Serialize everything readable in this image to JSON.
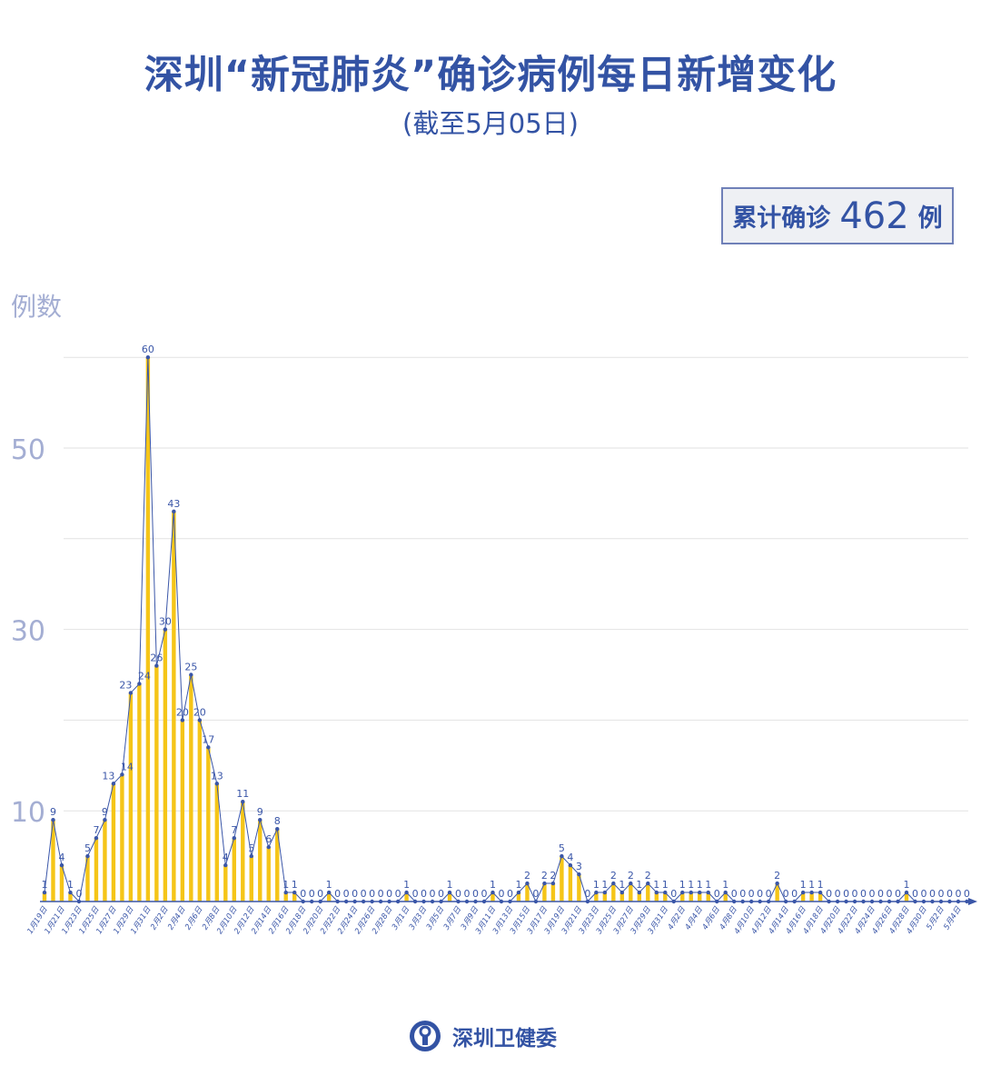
{
  "title": "深圳“新冠肺炎”确诊病例每日新增变化",
  "subtitle": "(截至5月05日)",
  "total": {
    "label": "累计确诊",
    "value": "462",
    "unit": "例"
  },
  "footer": {
    "org": "深圳卫健委"
  },
  "colors": {
    "bar": "#f5c518",
    "line": "#3a56a8",
    "text": "#3353a4",
    "axis_tick": "#a4aed3",
    "grid": "#e2e2e2"
  },
  "chart_data": {
    "type": "bar+line",
    "ylabel": "例数",
    "ylim": [
      0,
      60
    ],
    "yticks": [
      10,
      30,
      50
    ],
    "gridlines": [
      10,
      20,
      30,
      40,
      50,
      60
    ],
    "grid": true,
    "start_date": "1月19日",
    "values": [
      1,
      9,
      4,
      1,
      0,
      5,
      7,
      9,
      13,
      14,
      23,
      24,
      60,
      26,
      30,
      43,
      20,
      25,
      20,
      17,
      13,
      4,
      7,
      11,
      5,
      9,
      6,
      8,
      1,
      1,
      0,
      0,
      0,
      1,
      0,
      0,
      0,
      0,
      0,
      0,
      0,
      0,
      1,
      0,
      0,
      0,
      0,
      1,
      0,
      0,
      0,
      0,
      1,
      0,
      0,
      1,
      2,
      0,
      2,
      2,
      5,
      4,
      3,
      0,
      1,
      1,
      2,
      1,
      2,
      1,
      2,
      1,
      1,
      0,
      1,
      1,
      1,
      1,
      0,
      1,
      0,
      0,
      0,
      0,
      0,
      2,
      0,
      0,
      1,
      1,
      1,
      0,
      0,
      0,
      0,
      0,
      0,
      0,
      0,
      0,
      1,
      0,
      0,
      0,
      0,
      0,
      0,
      0
    ],
    "xtick_labels": [
      "1月19日",
      "1月21日",
      "1月23日",
      "1月25日",
      "1月27日",
      "1月29日",
      "1月31日",
      "2月2日",
      "2月4日",
      "2月6日",
      "2月8日",
      "2月10日",
      "2月12日",
      "2月14日",
      "2月16日",
      "2月18日",
      "2月20日",
      "2月22日",
      "2月24日",
      "2月26日",
      "2月28日",
      "3月1日",
      "3月3日",
      "3月5日",
      "3月7日",
      "3月9日",
      "3月11日",
      "3月13日",
      "3月15日",
      "3月17日",
      "3月19日",
      "3月21日",
      "3月23日",
      "3月25日",
      "3月27日",
      "3月29日",
      "3月31日",
      "4月2日",
      "4月4日",
      "4月6日",
      "4月8日",
      "4月10日",
      "4月12日",
      "4月14日",
      "4月16日",
      "4月18日",
      "4月20日",
      "4月22日",
      "4月24日",
      "4月26日",
      "4月28日",
      "4月30日",
      "5月2日",
      "5月4日"
    ]
  }
}
